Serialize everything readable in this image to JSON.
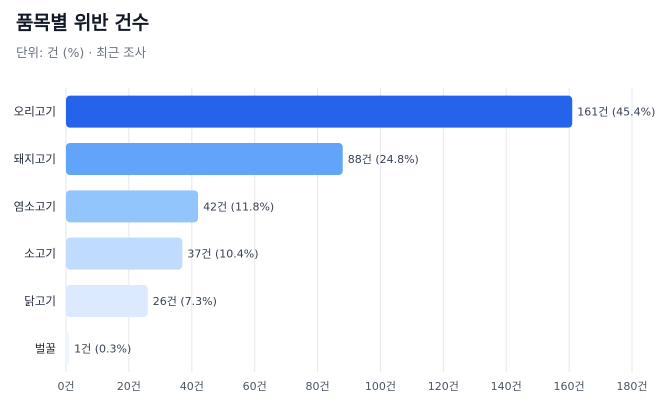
{
  "header": {
    "title": "품목별 위반 건수",
    "subtitle": "단위: 건 (%) · 최근 조사"
  },
  "chart_data": {
    "type": "bar",
    "orientation": "horizontal",
    "categories": [
      "오리고기",
      "돼지고기",
      "염소고기",
      "소고기",
      "닭고기",
      "벌꿀"
    ],
    "values": [
      161,
      88,
      42,
      37,
      26,
      1
    ],
    "value_labels": [
      "161건 (45.4%)",
      "88건 (24.8%)",
      "42건 (11.8%)",
      "37건 (10.4%)",
      "26건 (7.3%)",
      "1건 (0.3%)"
    ],
    "bar_colors": [
      "#2563eb",
      "#60a5fa",
      "#93c5fd",
      "#bfdbfe",
      "#dbeafe",
      "#eff6ff"
    ],
    "xlim": [
      0,
      180
    ],
    "x_ticks": [
      0,
      20,
      40,
      60,
      80,
      100,
      120,
      140,
      160,
      180
    ],
    "x_tick_labels": [
      "0건",
      "20건",
      "40건",
      "60건",
      "80건",
      "100건",
      "120건",
      "140건",
      "160건",
      "180건"
    ],
    "grid": true,
    "grid_color": "#e5e7eb",
    "title": "품목별 위반 건수",
    "subtitle": "단위: 건 (%) · 최근 조사",
    "xlabel": "",
    "ylabel": ""
  }
}
